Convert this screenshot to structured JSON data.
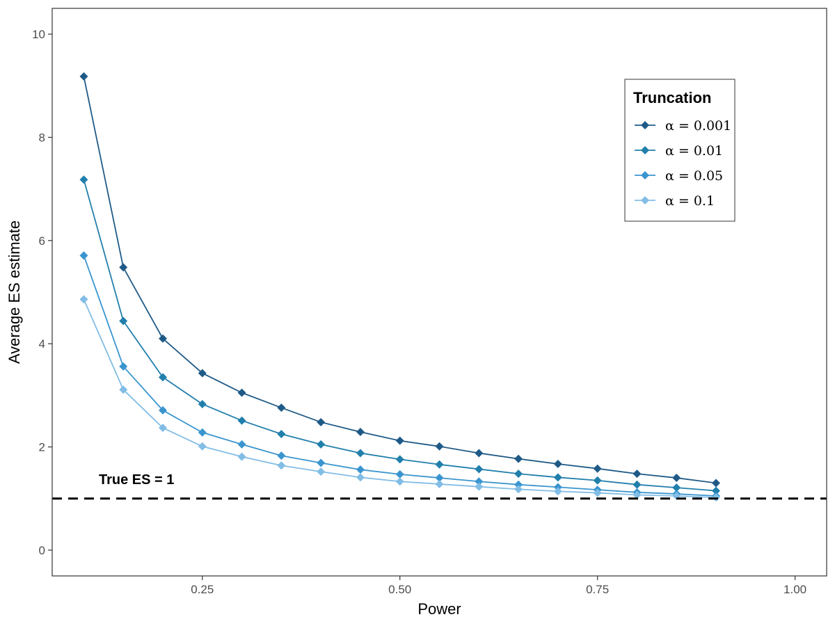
{
  "chart_data": {
    "type": "line",
    "xlabel": "Power",
    "ylabel": "Average ES estimate",
    "xlim": [
      0.06,
      1.04
    ],
    "ylim": [
      -0.5,
      10.5
    ],
    "x_ticks": [
      0.25,
      0.5,
      0.75,
      1.0
    ],
    "x_tick_labels": [
      "0.25",
      "0.50",
      "0.75",
      "1.00"
    ],
    "y_ticks": [
      0,
      2,
      4,
      6,
      8,
      10
    ],
    "y_tick_labels": [
      "0",
      "2",
      "4",
      "6",
      "8",
      "10"
    ],
    "grid": false,
    "legend": {
      "title": "Truncation",
      "placement": "top-right"
    },
    "x": [
      0.1,
      0.15,
      0.2,
      0.25,
      0.3,
      0.35,
      0.4,
      0.45,
      0.5,
      0.55,
      0.6,
      0.65,
      0.7,
      0.75,
      0.8,
      0.85,
      0.9
    ],
    "series": [
      {
        "name": "α = 0.001",
        "color": "#1f5a87",
        "values": [
          9.18,
          5.48,
          4.1,
          3.43,
          3.05,
          2.76,
          2.48,
          2.29,
          2.12,
          2.01,
          1.88,
          1.77,
          1.67,
          1.58,
          1.48,
          1.4,
          1.3
        ]
      },
      {
        "name": "α = 0.01",
        "color": "#217fac",
        "values": [
          7.18,
          4.44,
          3.35,
          2.83,
          2.51,
          2.25,
          2.05,
          1.88,
          1.76,
          1.66,
          1.57,
          1.48,
          1.41,
          1.35,
          1.27,
          1.21,
          1.15
        ]
      },
      {
        "name": "α = 0.05",
        "color": "#3a95cf",
        "values": [
          5.71,
          3.56,
          2.71,
          2.28,
          2.05,
          1.83,
          1.69,
          1.56,
          1.47,
          1.4,
          1.33,
          1.27,
          1.22,
          1.17,
          1.12,
          1.09,
          1.05
        ]
      },
      {
        "name": "α = 0.1",
        "color": "#82bde6",
        "values": [
          4.86,
          3.11,
          2.37,
          2.01,
          1.81,
          1.64,
          1.52,
          1.41,
          1.33,
          1.28,
          1.23,
          1.18,
          1.14,
          1.11,
          1.07,
          1.05,
          1.02
        ]
      }
    ],
    "reference_line": {
      "y": 1,
      "style": "dashed",
      "color": "#000000",
      "label": "True ES = 1"
    }
  }
}
